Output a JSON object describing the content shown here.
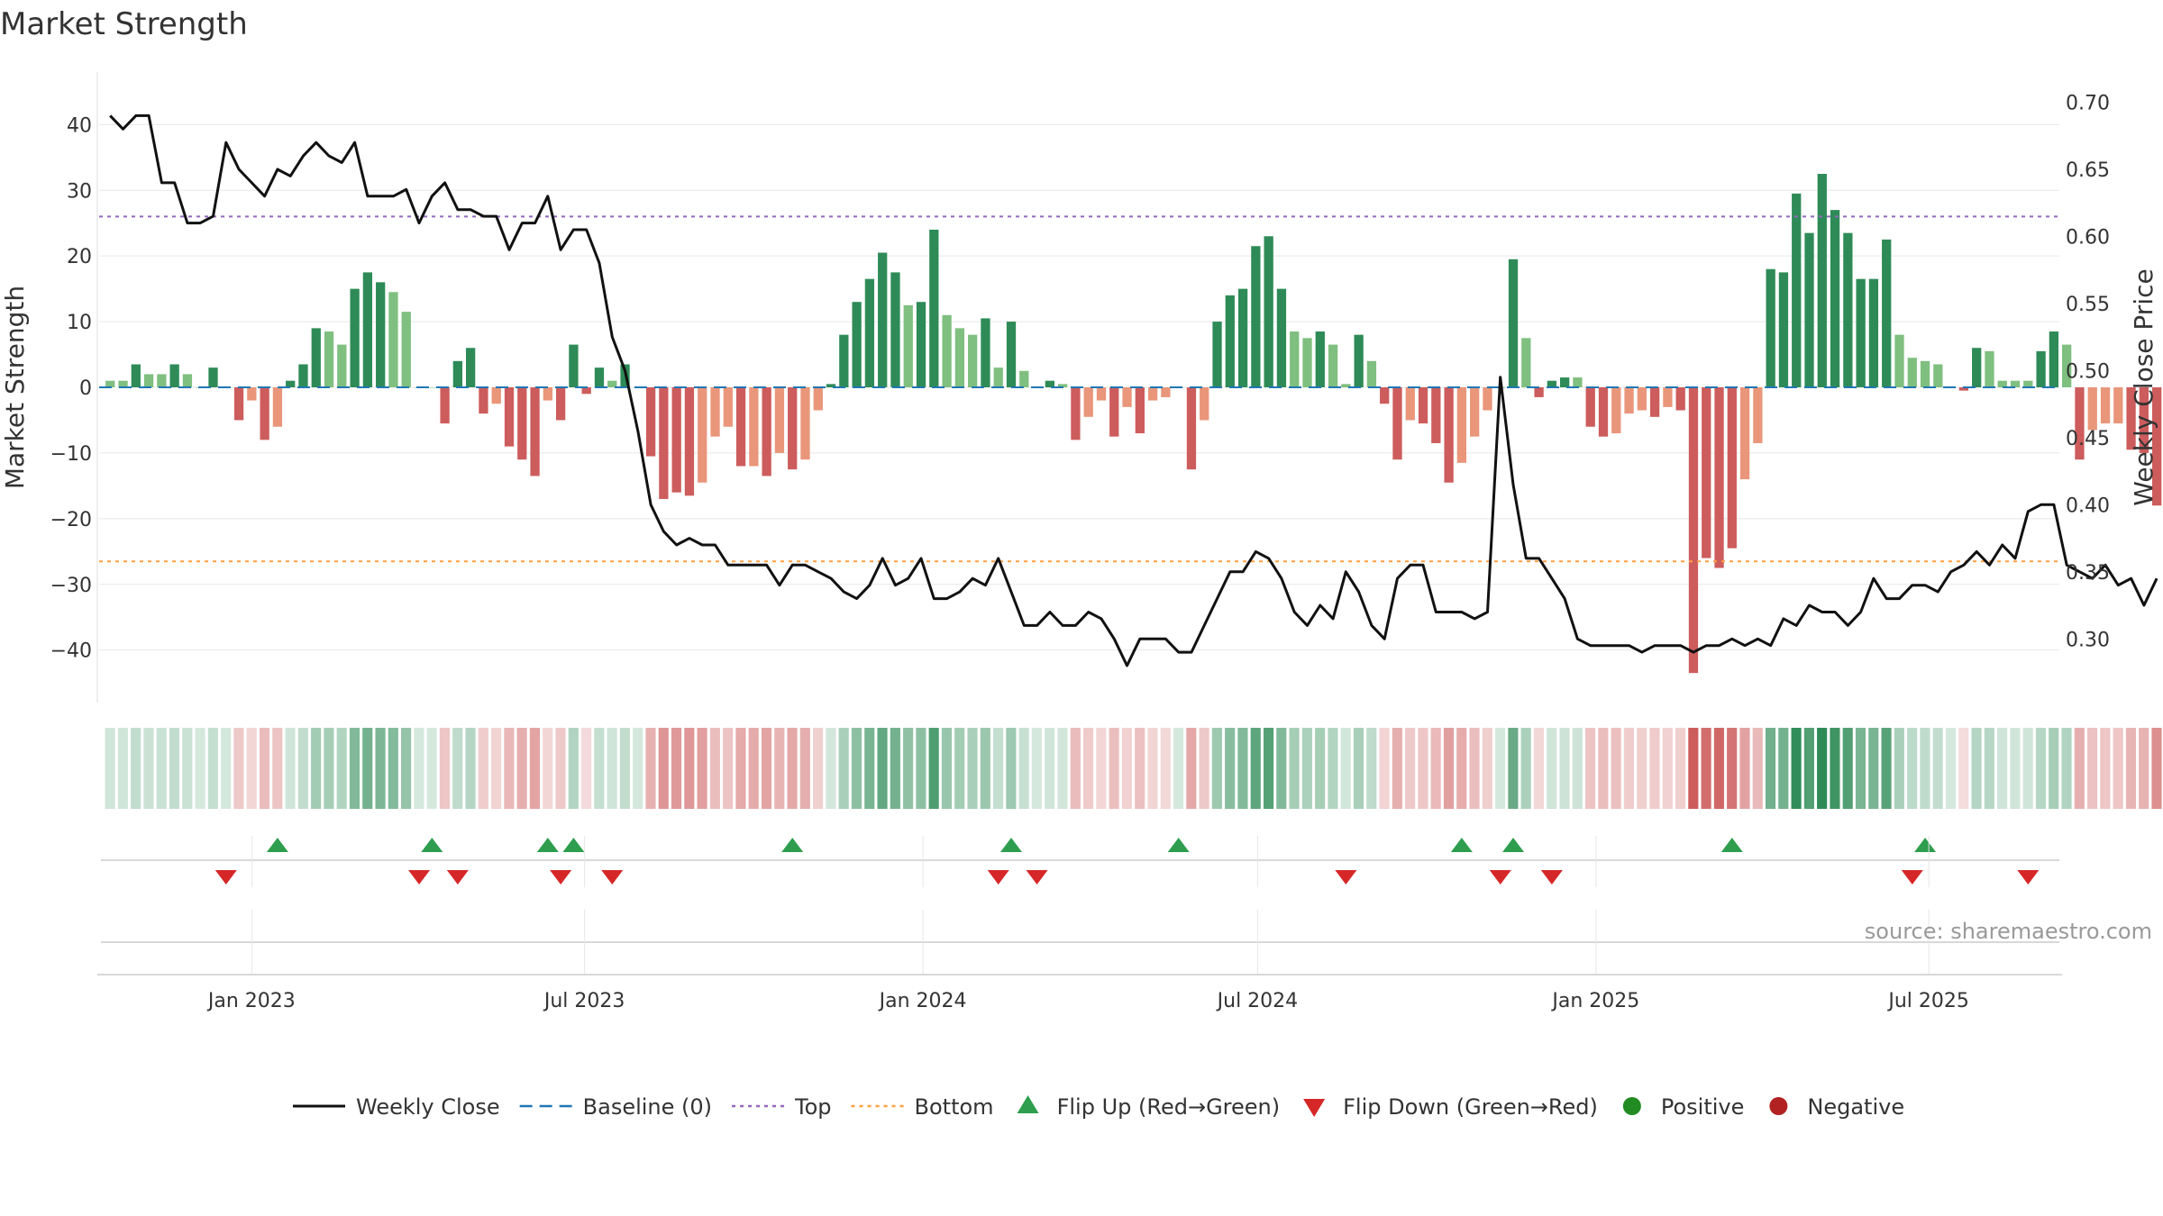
{
  "title": "Market Strength",
  "source": "source: sharemaestro.com",
  "colors": {
    "close": "#111111",
    "baseline": "#1f77b4",
    "top": "#9467bd",
    "bottom": "#ff9f40",
    "up_strong": "#2e8b57",
    "up_light": "#7fbf7f",
    "down_strong": "#cd5c5c",
    "down_light": "#e9967a",
    "flip_up": "#2e9e4e",
    "flip_down": "#d62728",
    "positive": "#228b22",
    "negative": "#b22222",
    "grid": "#e8e8e8"
  },
  "chart_data": {
    "type": "bar",
    "x_range": [
      "2022-10-10",
      "2025-09-10"
    ],
    "x_ticks": [
      {
        "date": "2023-01-01",
        "label": "Jan 2023"
      },
      {
        "date": "2023-07-01",
        "label": "Jul 2023"
      },
      {
        "date": "2024-01-01",
        "label": "Jan 2024"
      },
      {
        "date": "2024-07-01",
        "label": "Jul 2024"
      },
      {
        "date": "2025-01-01",
        "label": "Jan 2025"
      },
      {
        "date": "2025-07-01",
        "label": "Jul 2025"
      }
    ],
    "y_left": {
      "label": "Market Strength",
      "ylim": [
        -48,
        48
      ],
      "ticks": [
        40,
        30,
        20,
        10,
        0,
        -10,
        -20,
        -30,
        -40
      ]
    },
    "y_right": {
      "label": "Weekly Close Price",
      "ylim": [
        0.2525,
        0.7225
      ],
      "ticks": [
        0.7,
        0.65,
        0.6,
        0.55,
        0.5,
        0.45,
        0.4,
        0.35,
        0.3
      ],
      "tick_labels": [
        "0.70",
        "0.65",
        "0.60",
        "0.55",
        "0.50",
        "0.45",
        "0.40",
        "0.35",
        "0.30"
      ]
    },
    "top_level": 26,
    "bottom_level": -26.5,
    "weeks_start": "2022-10-16",
    "strength": [
      1,
      1,
      3.5,
      2,
      2,
      3.5,
      2,
      0,
      3,
      0,
      -5,
      -2,
      -8,
      -6,
      1,
      3.5,
      9,
      8.5,
      6.5,
      15,
      17.5,
      16,
      14.5,
      11.5,
      0,
      0,
      -5.5,
      4,
      6,
      -4,
      -2.5,
      -9,
      -11,
      -13.5,
      -2,
      -5,
      6.5,
      -1,
      3,
      1,
      3.5,
      0,
      -10.5,
      -17,
      -16,
      -16.5,
      -14.5,
      -7.5,
      -6,
      -12,
      -12,
      -13.5,
      -10,
      -12.5,
      -11,
      -3.5,
      0.5,
      8,
      13,
      16.5,
      20.5,
      17.5,
      12.5,
      13,
      24,
      11,
      9,
      8,
      10.5,
      3,
      10,
      2.5,
      0,
      1,
      0.5,
      -8,
      -4.5,
      -2,
      -7.5,
      -3,
      -7,
      -2,
      -1.5,
      0,
      -12.5,
      -5,
      10,
      14,
      15,
      21.5,
      23,
      15,
      8.5,
      7.5,
      8.5,
      6.5,
      0.5,
      8,
      4,
      -2.5,
      -11,
      -5,
      -5.5,
      -8.5,
      -14.5,
      -11.5,
      -7.5,
      -3.5,
      0,
      19.5,
      7.5,
      -1.5,
      1,
      1.5,
      1.5,
      -6,
      -7.5,
      -7,
      -4,
      -3.5,
      -4.5,
      -3,
      -3.5,
      -43.5,
      -26,
      -27.5,
      -24.5,
      -14,
      -8.5,
      18,
      17.5,
      29.5,
      23.5,
      32.5,
      27,
      23.5,
      16.5,
      16.5,
      22.5,
      8,
      4.5,
      4,
      3.5,
      0,
      -0.5,
      6,
      5.5,
      1,
      1,
      1,
      5.5,
      8.5,
      6.5,
      -11,
      -6.5,
      -5.5,
      -5.5,
      -9.5,
      -10,
      -18,
      -18.5
    ],
    "close": [
      0.69,
      0.68,
      0.69,
      0.69,
      0.64,
      0.64,
      0.61,
      0.61,
      0.615,
      0.67,
      0.65,
      0.64,
      0.63,
      0.65,
      0.645,
      0.66,
      0.67,
      0.66,
      0.655,
      0.67,
      0.63,
      0.63,
      0.63,
      0.635,
      0.61,
      0.63,
      0.64,
      0.62,
      0.62,
      0.615,
      0.615,
      0.59,
      0.61,
      0.61,
      0.63,
      0.59,
      0.605,
      0.605,
      0.58,
      0.525,
      0.5,
      0.455,
      0.4,
      0.38,
      0.37,
      0.375,
      0.37,
      0.37,
      0.355,
      0.355,
      0.355,
      0.355,
      0.34,
      0.355,
      0.355,
      0.35,
      0.345,
      0.335,
      0.33,
      0.34,
      0.36,
      0.34,
      0.345,
      0.36,
      0.33,
      0.33,
      0.335,
      0.345,
      0.34,
      0.36,
      0.335,
      0.31,
      0.31,
      0.32,
      0.31,
      0.31,
      0.32,
      0.315,
      0.3,
      0.28,
      0.3,
      0.3,
      0.3,
      0.29,
      0.29,
      0.31,
      0.33,
      0.35,
      0.35,
      0.365,
      0.36,
      0.345,
      0.32,
      0.31,
      0.325,
      0.315,
      0.35,
      0.335,
      0.31,
      0.3,
      0.345,
      0.355,
      0.355,
      0.32,
      0.32,
      0.32,
      0.315,
      0.32,
      0.495,
      0.415,
      0.36,
      0.36,
      0.345,
      0.33,
      0.3,
      0.295,
      0.295,
      0.295,
      0.295,
      0.29,
      0.295,
      0.295,
      0.295,
      0.29,
      0.295,
      0.295,
      0.3,
      0.295,
      0.3,
      0.295,
      0.315,
      0.31,
      0.325,
      0.32,
      0.32,
      0.31,
      0.32,
      0.345,
      0.33,
      0.33,
      0.34,
      0.34,
      0.335,
      0.35,
      0.355,
      0.365,
      0.355,
      0.37,
      0.36,
      0.395,
      0.4,
      0.4,
      0.355,
      0.35,
      0.345,
      0.355,
      0.34,
      0.345,
      0.325,
      0.345
    ],
    "flip_up_weeks": [
      13,
      25,
      34,
      36,
      53,
      70,
      83,
      105,
      109,
      126,
      141
    ],
    "flip_down_weeks": [
      9,
      24,
      27,
      35,
      39,
      69,
      72,
      96,
      108,
      112,
      140,
      149
    ]
  },
  "legend": [
    {
      "key": "close",
      "label": "Weekly Close",
      "marker": "line"
    },
    {
      "key": "baseline",
      "label": "Baseline (0)",
      "marker": "dash"
    },
    {
      "key": "top",
      "label": "Top",
      "marker": "dot"
    },
    {
      "key": "bottom",
      "label": "Bottom",
      "marker": "dot"
    },
    {
      "key": "flip_up",
      "label": "Flip Up (Red→Green)",
      "marker": "tri-up"
    },
    {
      "key": "flip_down",
      "label": "Flip Down (Green→Red)",
      "marker": "tri-down"
    },
    {
      "key": "positive",
      "label": "Positive",
      "marker": "circle"
    },
    {
      "key": "negative",
      "label": "Negative",
      "marker": "circle"
    }
  ]
}
